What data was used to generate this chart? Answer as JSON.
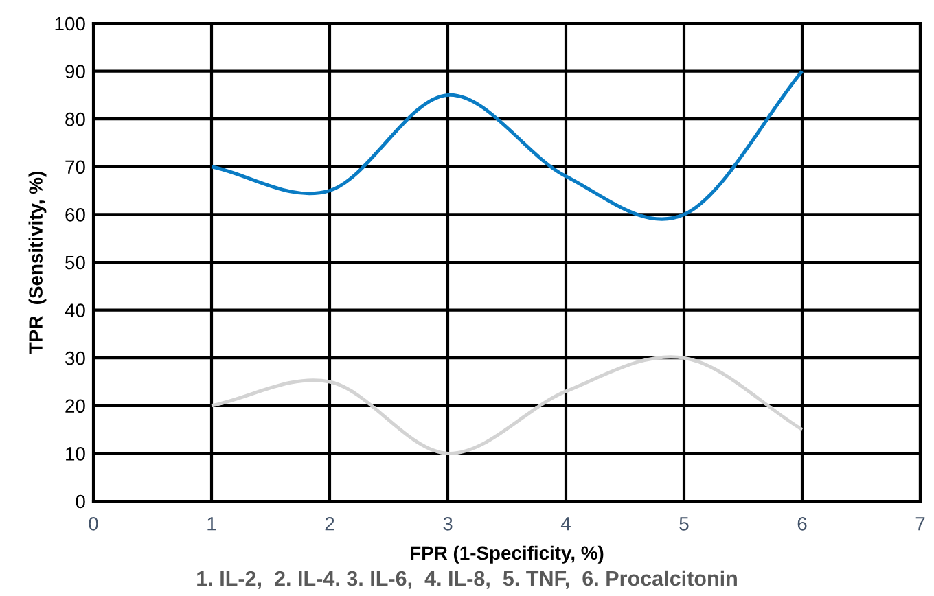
{
  "chart_data": {
    "type": "line",
    "xlabel": "FPR (1-Specificity, %)",
    "ylabel": "TPR  (Sensitivity, %)",
    "annotations": [
      "1. IL-2,  2. IL-4. 3. IL-6,  4. IL-8,  5. TNF,  6. Procalcitonin"
    ],
    "x": [
      1,
      2,
      3,
      4,
      5,
      6
    ],
    "series": [
      {
        "color": "#0a7cc4",
        "values": [
          70,
          65,
          85,
          68,
          60,
          90
        ]
      },
      {
        "color": "#d3d3d3",
        "values": [
          20,
          25,
          10,
          23,
          30,
          15
        ]
      }
    ],
    "xlim": [
      0,
      7
    ],
    "xticks": [
      0,
      1,
      2,
      3,
      4,
      5,
      6,
      7
    ],
    "ylim": [
      0,
      100
    ],
    "yticks": [
      0,
      10,
      20,
      30,
      40,
      50,
      60,
      70,
      80,
      90,
      100
    ],
    "grid": true,
    "marker": "none",
    "line_style": "solid"
  }
}
